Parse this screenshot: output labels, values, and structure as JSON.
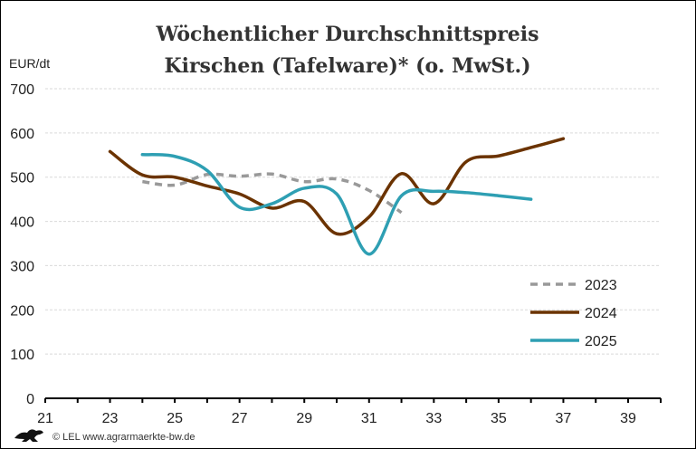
{
  "chart_data": {
    "type": "line",
    "title": [
      "Wöchentlicher Durchschnittspreis",
      "Kirschen (Tafelware)* (o. MwSt.)"
    ],
    "ylabel": "EUR/dt",
    "xlabel": "",
    "xlim": [
      21,
      39
    ],
    "ylim": [
      0,
      700
    ],
    "xticks": [
      21,
      23,
      25,
      27,
      29,
      31,
      33,
      35,
      37,
      39
    ],
    "yticks": [
      0,
      100,
      200,
      300,
      400,
      500,
      600,
      700
    ],
    "grid": true,
    "legend_position": "bottom-right",
    "series": [
      {
        "name": "2023",
        "color": "#999999",
        "dashed": true,
        "x": [
          24,
          25,
          26,
          27,
          28,
          29,
          30,
          31,
          32
        ],
        "values": [
          490,
          482,
          506,
          502,
          507,
          490,
          496,
          470,
          420
        ]
      },
      {
        "name": "2024",
        "color": "#6b3300",
        "dashed": false,
        "x": [
          23,
          24,
          25,
          26,
          27,
          28,
          29,
          30,
          31,
          32,
          33,
          34,
          35,
          36,
          37
        ],
        "values": [
          558,
          505,
          500,
          480,
          462,
          430,
          445,
          372,
          410,
          508,
          440,
          535,
          548,
          567,
          587
        ]
      },
      {
        "name": "2025",
        "color": "#2e9fb3",
        "dashed": false,
        "x": [
          24,
          25,
          26,
          27,
          28,
          29,
          30,
          31,
          32,
          33,
          34,
          35,
          36
        ],
        "values": [
          551,
          547,
          515,
          432,
          440,
          475,
          462,
          326,
          458,
          468,
          465,
          458,
          450
        ]
      }
    ]
  },
  "footer": "© LEL www.agrarmaerkte-bw.de"
}
